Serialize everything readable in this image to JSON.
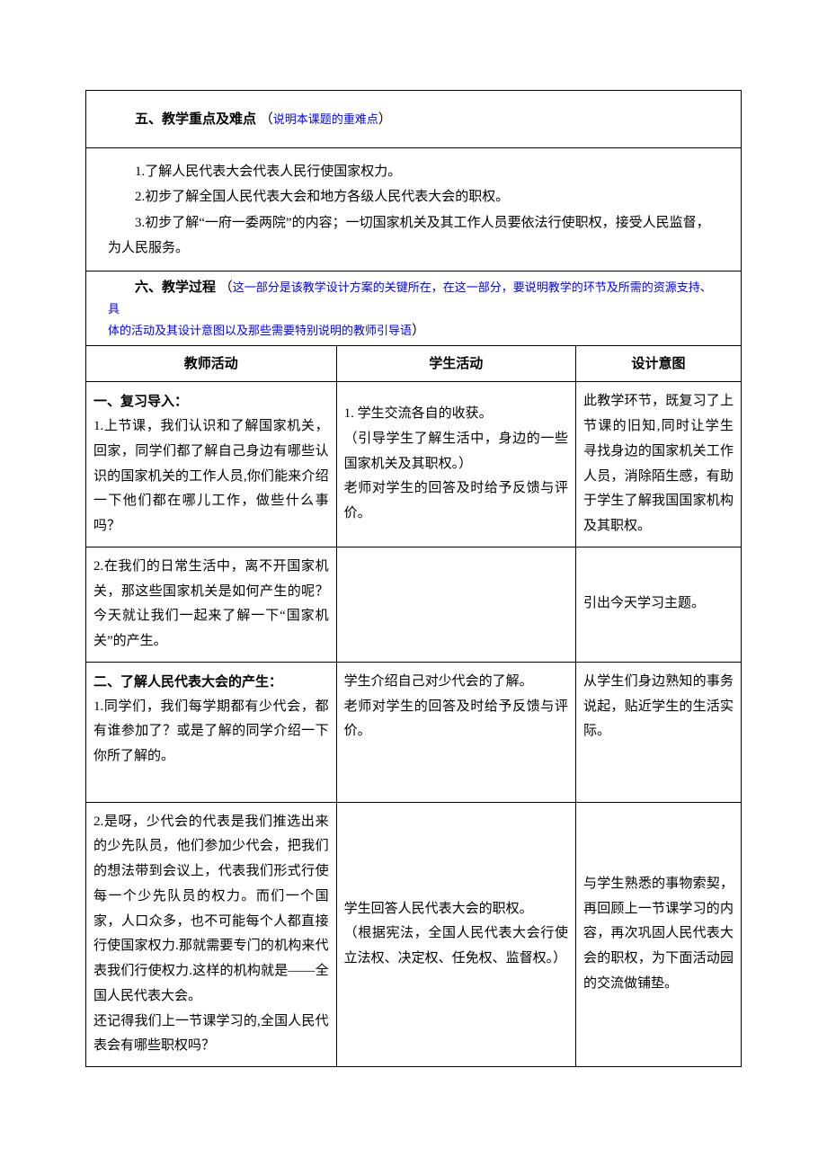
{
  "section5": {
    "title": "五、教学重点及难点",
    "note_open": "（",
    "note": "说明本课题的重难点",
    "note_close": "）",
    "body": [
      "1.了解人民代表大会代表人民行使国家权力。",
      "2.初步了解全国人民代表大会和地方各级人民代表大会的职权。",
      "3.初步了解“一府一委两院”的内容；一切国家机关及其工作人员要依法行使职权，接受人民监督，为人民服务。"
    ]
  },
  "section6": {
    "title": "六、教学过程",
    "note_open": "（",
    "note_line1": "这一部分是该教学设计方案的关键所在，在这一部分，要说明教学的环节及所需的资源支持、具",
    "note_line2": "体的活动及其设计意图以及那些需要特别说明的教师引导语",
    "note_close": "）",
    "headers": {
      "teacher": "教师活动",
      "student": "学生活动",
      "intent": "设计意图"
    },
    "rows": [
      {
        "teacher_bold": "一、复习导入：",
        "teacher": "1.上节课，我们认识和了解国家机关，回家，同学们都了解自己身边有哪些认识的国家机关的工作人员,你们能来介绍一下他们都在哪儿工作，做些什么事吗？",
        "student_l1": "1. 学生交流各自的收获。",
        "student_l2": "（引导学生了解生活中，身边的一些国家机关及其职权。）",
        "student_l3": "老师对学生的回答及时给予反馈与评价。",
        "intent": "此教学环节，既复习了上节课的旧知,同时让学生寻找身边的国家机关工作人员，消除陌生感，有助于学生了解我国国家机构及其职权。"
      },
      {
        "teacher": "2.在我们的日常生活中，离不开国家机关，那这些国家机关是如何产生的呢？今天就让我们一起来了解一下“国家机关”的产生。",
        "student": "",
        "intent": "引出今天学习主题。"
      },
      {
        "teacher_bold": "二、了解人民代表大会的产生：",
        "teacher": "1.同学们，我们每学期都有少代会，都有谁参加了？或是了解的同学介绍一下你所了解的。",
        "student_l1": "学生介绍自己对少代会的了解。",
        "student_l2": "老师对学生的回答及时给予反馈与评价。",
        "intent": "从学生们身边熟知的事务说起，贴近学生的生活实际。"
      },
      {
        "teacher_p1": "2.是呀，少代会的代表是我们推选出来的少先队员，他们参加少代会，把我们的想法带到会议上，代表我们形式行使每一个少先队员的权力。而们一个国家，人口众多，也不可能每个人都直接行使国家权力.那就需要专门的机构来代表我们行使权力.这样的机构就是——全国人民代表大会。",
        "teacher_p2": "还记得我们上一节课学习的,全国人民代表会有哪些职权吗？",
        "student_l1": "学生回答人民代表大会的职权。",
        "student_l2": "（根据宪法，全国人民代表大会行使立法权、决定权、任免权、监督权。）",
        "intent": "与学生熟悉的事物索契，再回顾上一节课学习的内容，再次巩固人民代表大会的职权，为下面活动园的交流做铺垫。"
      }
    ]
  }
}
